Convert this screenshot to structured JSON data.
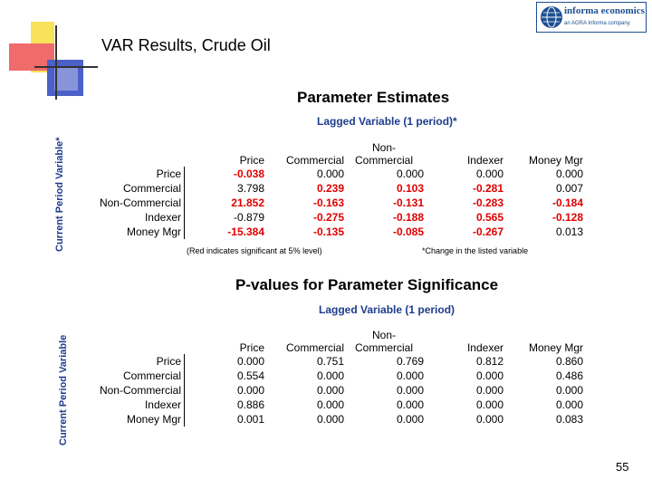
{
  "logo": {
    "name": "informa economics",
    "tagline": "an AGRA Informa company"
  },
  "title": "VAR Results, Crude Oil",
  "axis_label_top": "Current Period Variable*",
  "axis_label_bottom": "Current Period Variable",
  "section1": {
    "heading": "Parameter Estimates",
    "subheading": "Lagged Variable (1 period)*",
    "columns": [
      "Price",
      "Commercial",
      "Non-\nCommercial",
      "Indexer",
      "Money Mgr"
    ],
    "rows": [
      {
        "label": "Price",
        "values": [
          "-0.038",
          "0.000",
          "0.000",
          "0.000",
          "0.000"
        ],
        "sig": [
          true,
          false,
          false,
          false,
          false
        ]
      },
      {
        "label": "Commercial",
        "values": [
          "3.798",
          "0.239",
          "0.103",
          "-0.281",
          "0.007"
        ],
        "sig": [
          false,
          true,
          true,
          true,
          false
        ]
      },
      {
        "label": "Non-Commercial",
        "values": [
          "21.852",
          "-0.163",
          "-0.131",
          "-0.283",
          "-0.184"
        ],
        "sig": [
          true,
          true,
          true,
          true,
          true
        ]
      },
      {
        "label": "Indexer",
        "values": [
          "-0.879",
          "-0.275",
          "-0.188",
          "0.565",
          "-0.128"
        ],
        "sig": [
          false,
          true,
          true,
          true,
          true
        ]
      },
      {
        "label": "Money Mgr",
        "values": [
          "-15.384",
          "-0.135",
          "-0.085",
          "-0.267",
          "0.013"
        ],
        "sig": [
          true,
          true,
          true,
          true,
          false
        ]
      }
    ],
    "note_left": "(Red indicates significant at 5% level)",
    "note_right": "*Change in the listed variable"
  },
  "section2": {
    "heading": "P-values for Parameter Significance",
    "subheading": "Lagged Variable (1 period)",
    "columns": [
      "Price",
      "Commercial",
      "Non-\nCommercial",
      "Indexer",
      "Money Mgr"
    ],
    "rows": [
      {
        "label": "Price",
        "values": [
          "0.000",
          "0.751",
          "0.769",
          "0.812",
          "0.860"
        ]
      },
      {
        "label": "Commercial",
        "values": [
          "0.554",
          "0.000",
          "0.000",
          "0.000",
          "0.486"
        ]
      },
      {
        "label": "Non-Commercial",
        "values": [
          "0.000",
          "0.000",
          "0.000",
          "0.000",
          "0.000"
        ]
      },
      {
        "label": "Indexer",
        "values": [
          "0.886",
          "0.000",
          "0.000",
          "0.000",
          "0.000"
        ]
      },
      {
        "label": "Money Mgr",
        "values": [
          "0.001",
          "0.000",
          "0.000",
          "0.000",
          "0.083"
        ]
      }
    ]
  },
  "page_number": "55",
  "colors": {
    "significant": "#e00000",
    "accent_blue": "#1d3c8c"
  }
}
